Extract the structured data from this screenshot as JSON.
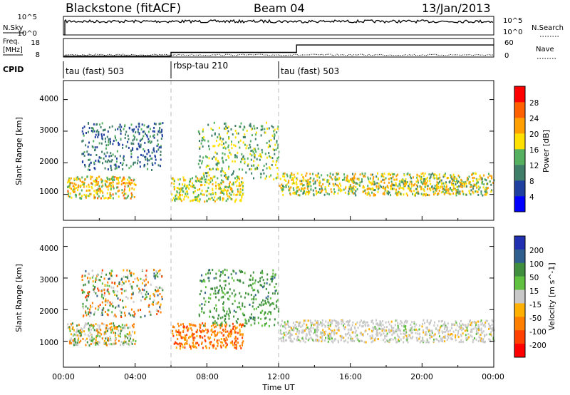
{
  "header": {
    "station": "Blackstone (fitACF)",
    "beam": "Beam 04",
    "date": "13/Jan/2013"
  },
  "left_labels": {
    "nsky": "N.Sky",
    "freq_line1": "Freq.",
    "freq_line2": "[MHz]",
    "cpid": "CPID"
  },
  "right_labels": {
    "nsearch": "N.Search",
    "nave": "Nave"
  },
  "noise_panel": {
    "left_ticks": [
      "10^5",
      "10^0"
    ],
    "right_ticks": [
      "10^5",
      "10^0"
    ]
  },
  "freq_panel": {
    "left_ticks": [
      "18",
      "8"
    ],
    "right_ticks": [
      "60",
      "0"
    ]
  },
  "cpid_segments": [
    {
      "label": "tau (fast) 503",
      "start_hour": 0,
      "end_hour": 6
    },
    {
      "label": "rbsp-tau 210",
      "start_hour": 6,
      "end_hour": 12
    },
    {
      "label": "tau (fast) 503",
      "start_hour": 12,
      "end_hour": 24
    }
  ],
  "x_axis": {
    "label": "Time UT",
    "ticks": [
      "00:00",
      "04:00",
      "08:00",
      "12:00",
      "16:00",
      "20:00",
      "00:00"
    ]
  },
  "power_panel": {
    "ylabel": "Slant Range [km]",
    "y_ticks": [
      "1000",
      "2000",
      "3000",
      "4000"
    ],
    "colorbar_label": "Power [dB]",
    "colorbar_ticks": [
      "4",
      "8",
      "12",
      "16",
      "20",
      "24",
      "28"
    ],
    "colors": [
      "#0000ff",
      "#2040a0",
      "#3f7f6a",
      "#55b060",
      "#ffe000",
      "#ffa000",
      "#ff6000",
      "#ff0000"
    ]
  },
  "velocity_panel": {
    "ylabel": "Slant Range [km]",
    "y_ticks": [
      "1000",
      "2000",
      "3000",
      "4000"
    ],
    "colorbar_label": "Velocity [m s^-1]",
    "colorbar_ticks": [
      "200",
      "100",
      "50",
      "15",
      "-15",
      "-50",
      "-100",
      "-200"
    ],
    "colors": [
      "#2030b0",
      "#2f5f8f",
      "#3f8f3f",
      "#60c040",
      "#c8c8c8",
      "#ffb000",
      "#ff8000",
      "#ff4000",
      "#ff0000"
    ]
  },
  "chart_data": [
    {
      "type": "heatmap",
      "title": "Blackstone (fitACF) Beam 04 13/Jan/2013",
      "variable": "Power",
      "xlabel": "Time UT",
      "ylabel": "Slant Range [km]",
      "xlim_hours": [
        0,
        24
      ],
      "ylim_km": [
        180,
        4600
      ],
      "colorbar_label": "Power [dB]",
      "colorbar_range": [
        0,
        32
      ],
      "scatter_bands": [
        {
          "name": "near band",
          "hours": [
            0.2,
            4.0
          ],
          "range_km": [
            900,
            1600
          ],
          "power_db": [
            12,
            26
          ]
        },
        {
          "name": "dawn arc",
          "hours": [
            1.0,
            5.5
          ],
          "range_km": [
            1800,
            3300
          ],
          "power_db": [
            4,
            14
          ]
        },
        {
          "name": "day band",
          "hours": [
            6.0,
            10.0
          ],
          "range_km": [
            800,
            1600
          ],
          "power_db": [
            12,
            22
          ]
        },
        {
          "name": "day arc",
          "hours": [
            7.5,
            12.0
          ],
          "range_km": [
            1500,
            3300
          ],
          "power_db": [
            8,
            20
          ]
        },
        {
          "name": "night band",
          "hours": [
            12.0,
            24.0
          ],
          "range_km": [
            1000,
            1700
          ],
          "power_db": [
            10,
            24
          ]
        }
      ]
    },
    {
      "type": "heatmap",
      "variable": "Velocity",
      "xlabel": "Time UT",
      "ylabel": "Slant Range [km]",
      "xlim_hours": [
        0,
        24
      ],
      "ylim_km": [
        180,
        4600
      ],
      "colorbar_label": "Velocity [m s^-1]",
      "colorbar_range": [
        -250,
        250
      ],
      "scatter_bands": [
        {
          "name": "near band",
          "hours": [
            0.2,
            4.0
          ],
          "range_km": [
            900,
            1600
          ],
          "velocity_ms": [
            -50,
            50
          ]
        },
        {
          "name": "dawn arc",
          "hours": [
            1.0,
            5.5
          ],
          "range_km": [
            1800,
            3300
          ],
          "velocity_ms": [
            -100,
            100
          ]
        },
        {
          "name": "day band",
          "hours": [
            6.0,
            10.0
          ],
          "range_km": [
            800,
            1600
          ],
          "velocity_ms": [
            -100,
            -20
          ]
        },
        {
          "name": "day arc",
          "hours": [
            7.5,
            12.0
          ],
          "range_km": [
            1500,
            3300
          ],
          "velocity_ms": [
            15,
            80
          ]
        },
        {
          "name": "night band",
          "hours": [
            12.0,
            24.0
          ],
          "range_km": [
            1000,
            1700
          ],
          "velocity_ms": [
            -20,
            20
          ]
        }
      ]
    }
  ]
}
